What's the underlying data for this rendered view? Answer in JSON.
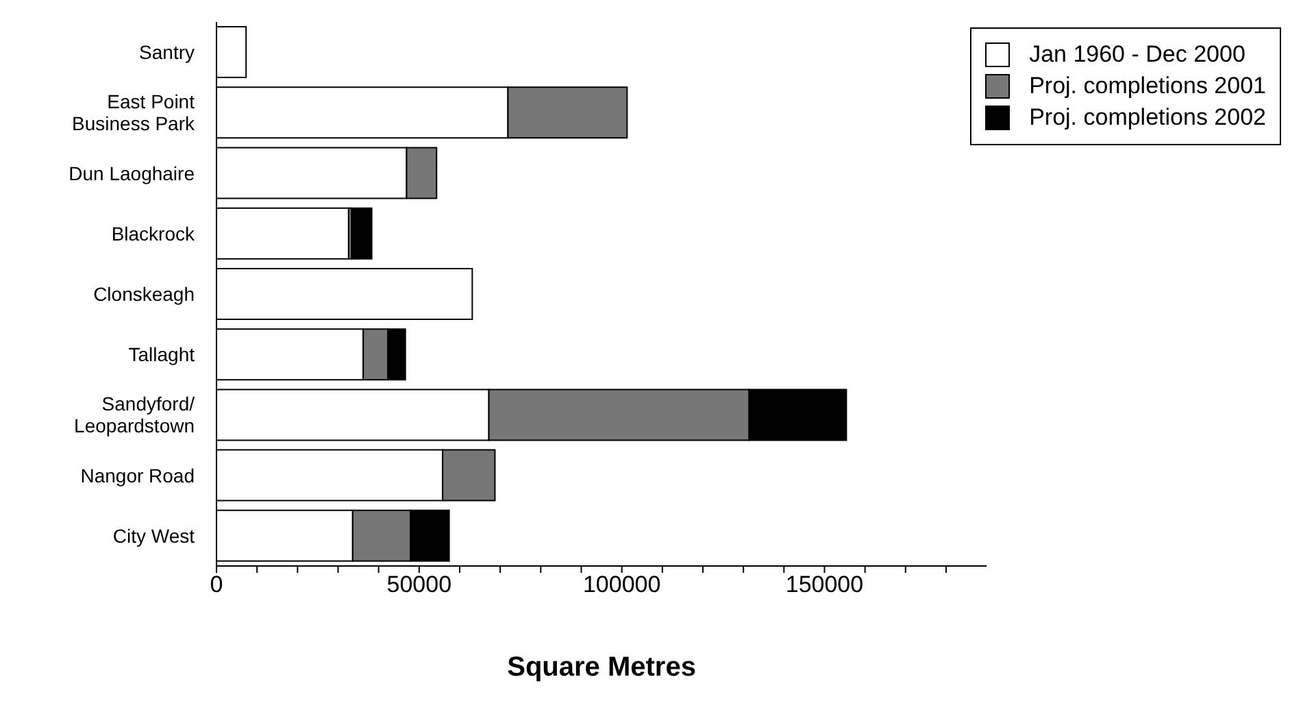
{
  "chart_data": {
    "type": "bar",
    "orientation": "horizontal",
    "stacked": true,
    "xlabel": "Square Metres",
    "categories": [
      "Santry",
      "East Point\nBusiness Park",
      "Dun Laoghaire",
      "Blackrock",
      "Clonskeagh",
      "Tallaght",
      "Sandyford/\nLeopardstown",
      "Nangor Road",
      "City West"
    ],
    "series": [
      {
        "name": "Jan 1960 - Dec 2000",
        "color": "#ffffff",
        "values": [
          7300,
          71900,
          46900,
          32600,
          63100,
          36200,
          67200,
          55800,
          33600
        ]
      },
      {
        "name": "Proj. completions 2001",
        "color": "#777777",
        "values": [
          null,
          29400,
          7400,
          700,
          null,
          6100,
          64200,
          12900,
          14300
        ]
      },
      {
        "name": "Proj. completions 2002",
        "color": "#000000",
        "values": [
          null,
          null,
          null,
          5000,
          null,
          4300,
          24000,
          null,
          9500
        ]
      }
    ],
    "xlim": [
      0,
      190000
    ],
    "xticks": [
      0,
      {
        "value": 10000,
        "label": null
      },
      {
        "value": 20000,
        "label": null
      },
      {
        "value": 30000,
        "label": null
      },
      {
        "value": 40000,
        "label": null
      },
      50000,
      {
        "value": 60000,
        "label": null
      },
      {
        "value": 70000,
        "label": null
      },
      {
        "value": 80000,
        "label": null
      },
      {
        "value": 90000,
        "label": null
      },
      100000,
      {
        "value": 110000,
        "label": null
      },
      {
        "value": 120000,
        "label": null
      },
      {
        "value": 130000,
        "label": null
      },
      {
        "value": 140000,
        "label": null
      },
      150000,
      {
        "value": 160000,
        "label": null
      },
      {
        "value": 170000,
        "label": null
      },
      {
        "value": 180000,
        "label": null
      }
    ],
    "grid": false,
    "legend": "top right"
  }
}
